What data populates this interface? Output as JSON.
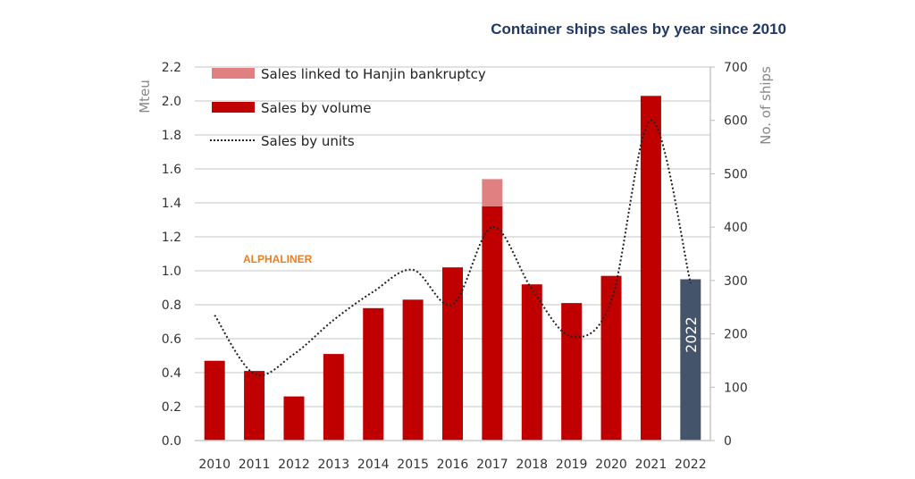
{
  "chart_data": {
    "type": "bar",
    "title": "Container ships sales by year since 2010",
    "watermark": "ALPHALINER",
    "categories": [
      "2010",
      "2011",
      "2012",
      "2013",
      "2014",
      "2015",
      "2016",
      "2017",
      "2018",
      "2019",
      "2020",
      "2021",
      "2022"
    ],
    "ylabel": "Mteu",
    "y2label": "No. of ships",
    "ylim": [
      0,
      2.2
    ],
    "y2lim": [
      0,
      700
    ],
    "yticks": [
      "0.0",
      "0.2",
      "0.4",
      "0.6",
      "0.8",
      "1.0",
      "1.2",
      "1.4",
      "1.6",
      "1.8",
      "2.0",
      "2.2"
    ],
    "y2ticks": [
      "0",
      "100",
      "200",
      "300",
      "400",
      "500",
      "600",
      "700"
    ],
    "grid": true,
    "legend_position": "top-left",
    "series": [
      {
        "name": "Sales linked to Hanjin bankruptcy",
        "type": "bar-stacked",
        "axis": "left",
        "color": "#e08080",
        "values": [
          0,
          0,
          0,
          0,
          0,
          0,
          0,
          0.16,
          0,
          0,
          0,
          0,
          0
        ]
      },
      {
        "name": "Sales by volume",
        "type": "bar",
        "axis": "left",
        "color": "#c00000",
        "values": [
          0.47,
          0.41,
          0.26,
          0.51,
          0.78,
          0.83,
          1.02,
          1.38,
          0.92,
          0.81,
          0.97,
          2.03,
          0.95
        ]
      },
      {
        "name": "Sales by units",
        "type": "line",
        "style": "dotted",
        "axis": "right",
        "color": "#222222",
        "values": [
          235,
          125,
          162,
          226,
          279,
          320,
          255,
          400,
          284,
          195,
          262,
          600,
          295
        ]
      }
    ],
    "highlight": {
      "category": "2022",
      "color": "#44546a",
      "label": "2022"
    }
  }
}
